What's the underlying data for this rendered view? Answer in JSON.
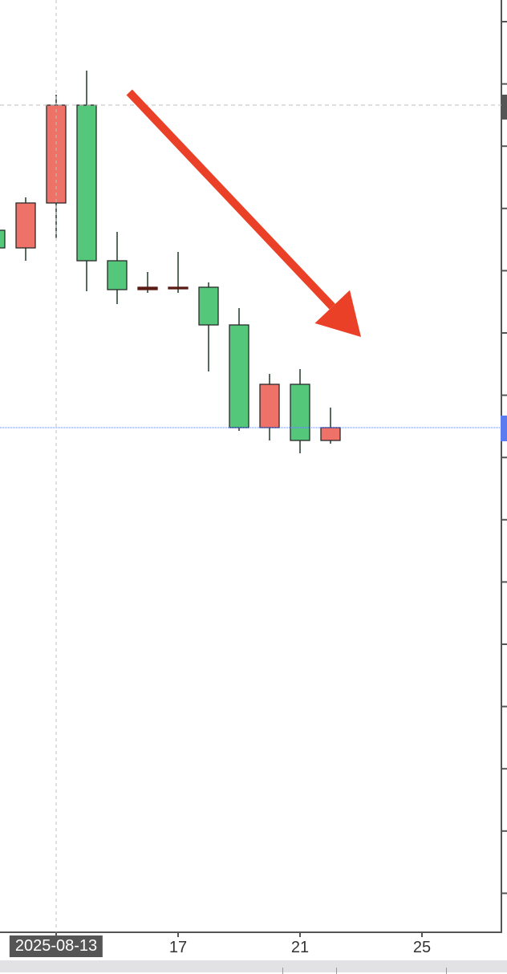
{
  "chart_data": {
    "type": "candlestick",
    "title": "",
    "convention": "red = up, green = down",
    "colors": {
      "up": "#ef7268",
      "down": "#55c77a",
      "doji": "#5a1a14",
      "wick": "#1f3a28",
      "arrow": "#ea4028",
      "crosshair": "#bdbdbd",
      "last_price_line": "#5b7cf0"
    },
    "x_tick_labels": [
      "2025-08-13",
      "17",
      "21",
      "25"
    ],
    "x_tick_days": [
      13,
      17,
      21,
      25
    ],
    "highlighted_x_label": "2025-08-13",
    "candles": [
      {
        "day": 11,
        "open": 92.5,
        "high": 92.5,
        "low": 90.3,
        "close": 90.3
      },
      {
        "day": 12,
        "open": 90.3,
        "high": 96.6,
        "low": 88.7,
        "close": 95.9
      },
      {
        "day": 13,
        "open": 95.9,
        "high": 109.4,
        "low": 91.5,
        "close": 108.1
      },
      {
        "day": 14,
        "open": 108.1,
        "high": 112.4,
        "low": 84.9,
        "close": 88.7
      },
      {
        "day": 15,
        "open": 88.7,
        "high": 92.3,
        "low": 83.3,
        "close": 85.1
      },
      {
        "day": 16,
        "open": 85.1,
        "high": 87.3,
        "low": 84.7,
        "close": 85.4
      },
      {
        "day": 17,
        "open": 85.4,
        "high": 89.8,
        "low": 84.7,
        "close": 85.4
      },
      {
        "day": 18,
        "open": 85.4,
        "high": 86.0,
        "low": 74.9,
        "close": 80.7
      },
      {
        "day": 19,
        "open": 80.7,
        "high": 82.8,
        "low": 67.5,
        "close": 67.9
      },
      {
        "day": 20,
        "open": 67.9,
        "high": 74.6,
        "low": 66.3,
        "close": 73.3
      },
      {
        "day": 21,
        "open": 73.3,
        "high": 75.2,
        "low": 64.7,
        "close": 66.3
      },
      {
        "day": 22,
        "open": 66.3,
        "high": 70.4,
        "low": 65.9,
        "close": 67.9
      }
    ],
    "crosshair": {
      "day": 13,
      "price": 108.1
    },
    "last_price": 67.9,
    "annotation": "downward arrow from day 15 to day 23",
    "arrow": {
      "from": {
        "day": 15.4,
        "price": 109.7
      },
      "to": {
        "day": 23.0,
        "price": 79.2
      }
    }
  }
}
